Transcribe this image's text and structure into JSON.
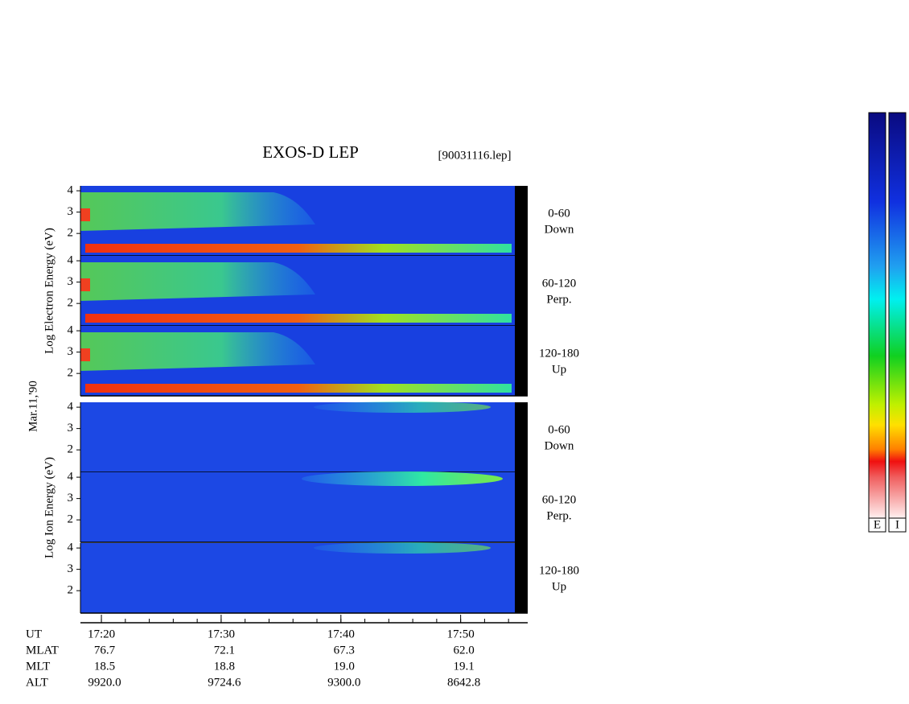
{
  "chart_data": {
    "type": "spectrogram",
    "title": "EXOS-D LEP",
    "file_label": "[90031116.lep]",
    "date_label": "Mar.11,'90",
    "xlim": [
      1038.25,
      1075.6
    ],
    "xticks": [
      {
        "value": 1040,
        "label": "17:20"
      },
      {
        "value": 1050,
        "label": "17:30"
      },
      {
        "value": 1060,
        "label": "17:40"
      },
      {
        "value": 1070,
        "label": "17:50"
      }
    ],
    "minor_tick_step": 2,
    "ylim": [
      0.95,
      4.23
    ],
    "yticks": [
      2,
      3,
      4
    ],
    "groups": [
      {
        "ylabel": "Log  Electron  Energy (eV)",
        "species": "electron",
        "panels": [
          {
            "angle": "0-60",
            "direction": "Down"
          },
          {
            "angle": "60-120",
            "direction": "Perp."
          },
          {
            "angle": "120-180",
            "direction": "Up"
          }
        ]
      },
      {
        "ylabel": "Log  Ion  Energy (eV)",
        "species": "ion",
        "panels": [
          {
            "angle": "0-60",
            "direction": "Down"
          },
          {
            "angle": "60-120",
            "direction": "Perp."
          },
          {
            "angle": "120-180",
            "direction": "Up"
          }
        ]
      }
    ],
    "orbit": {
      "labels": [
        "UT",
        "MLAT",
        "MLT",
        "ALT"
      ],
      "rows": [
        [
          "76.7",
          "72.1",
          "67.3",
          "62.0"
        ],
        [
          "18.5",
          "18.8",
          "19.0",
          "19.1"
        ],
        [
          "9920.0",
          "9724.6",
          "9300.0",
          "8642.8"
        ]
      ]
    },
    "colorbars": [
      "E",
      "I"
    ]
  }
}
